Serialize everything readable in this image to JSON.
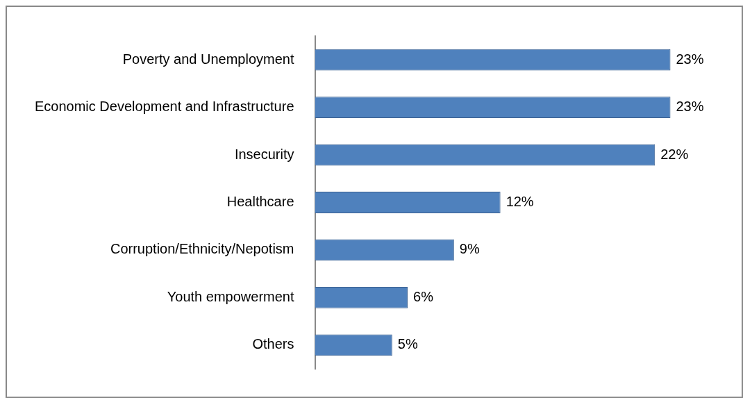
{
  "chart_data": {
    "type": "bar",
    "orientation": "horizontal",
    "categories": [
      "Poverty and Unemployment",
      "Economic Development and Infrastructure",
      "Insecurity",
      "Healthcare",
      "Corruption/Ethnicity/Nepotism",
      "Youth empowerment",
      "Others"
    ],
    "values": [
      23,
      23,
      22,
      12,
      9,
      6,
      5
    ],
    "value_labels": [
      "23%",
      "23%",
      "22%",
      "12%",
      "9%",
      "6%",
      "5%"
    ],
    "color": "#4f81bd",
    "grid": false,
    "legend": false
  }
}
